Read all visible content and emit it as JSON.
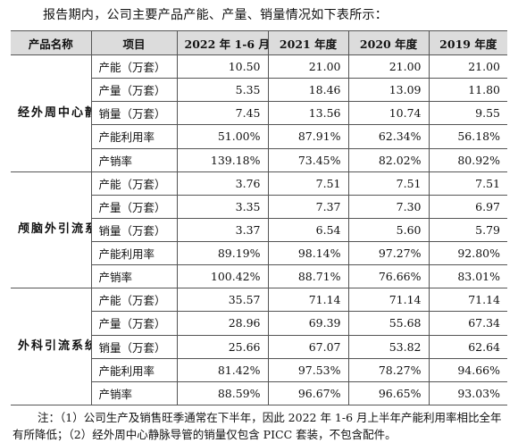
{
  "intro": "报告期内，公司主要产品产能、产量、销量情况如下表所示：",
  "table": {
    "headers": [
      "产品名称",
      "项目",
      "2022 年 1-6 月",
      "2021 年度",
      "2020 年度",
      "2019 年度"
    ],
    "products": [
      {
        "name": "经外周中心静脉导管",
        "rows": [
          {
            "metric": "产能（万套）",
            "values": [
              "10.50",
              "21.00",
              "21.00",
              "21.00"
            ]
          },
          {
            "metric": "产量（万套）",
            "values": [
              "5.35",
              "18.46",
              "13.09",
              "11.80"
            ]
          },
          {
            "metric": "销量（万套）",
            "values": [
              "7.45",
              "13.56",
              "10.74",
              "9.55"
            ]
          },
          {
            "metric": "产能利用率",
            "values": [
              "51.00%",
              "87.91%",
              "62.34%",
              "56.18%"
            ]
          },
          {
            "metric": "产销率",
            "values": [
              "139.18%",
              "73.45%",
              "82.02%",
              "80.92%"
            ]
          }
        ]
      },
      {
        "name": "颅脑外引流系统",
        "rows": [
          {
            "metric": "产能（万套）",
            "values": [
              "3.76",
              "7.51",
              "7.51",
              "7.51"
            ]
          },
          {
            "metric": "产量（万套）",
            "values": [
              "3.35",
              "7.37",
              "7.30",
              "6.97"
            ]
          },
          {
            "metric": "销量（万套）",
            "values": [
              "3.37",
              "6.54",
              "5.60",
              "5.79"
            ]
          },
          {
            "metric": "产能利用率",
            "values": [
              "89.19%",
              "98.14%",
              "97.27%",
              "92.80%"
            ]
          },
          {
            "metric": "产销率",
            "values": [
              "100.42%",
              "88.71%",
              "76.66%",
              "83.01%"
            ]
          }
        ]
      },
      {
        "name": "外科引流系统",
        "rows": [
          {
            "metric": "产能（万套）",
            "values": [
              "35.57",
              "71.14",
              "71.14",
              "71.14"
            ]
          },
          {
            "metric": "产量（万套）",
            "values": [
              "28.96",
              "69.39",
              "55.68",
              "67.34"
            ]
          },
          {
            "metric": "销量（万套）",
            "values": [
              "25.66",
              "67.07",
              "53.82",
              "62.64"
            ]
          },
          {
            "metric": "产能利用率",
            "values": [
              "81.42%",
              "97.53%",
              "78.27%",
              "94.66%"
            ]
          },
          {
            "metric": "产销率",
            "values": [
              "88.59%",
              "96.67%",
              "96.65%",
              "93.03%"
            ]
          }
        ]
      }
    ]
  },
  "note": "注：（1）公司生产及销售旺季通常在下半年，因此 2022 年 1-6 月上半年产能利用率相比全年有所降低；（2）经外周中心静脉导管的销量仅包含 PICC 套装，不包含配件。"
}
